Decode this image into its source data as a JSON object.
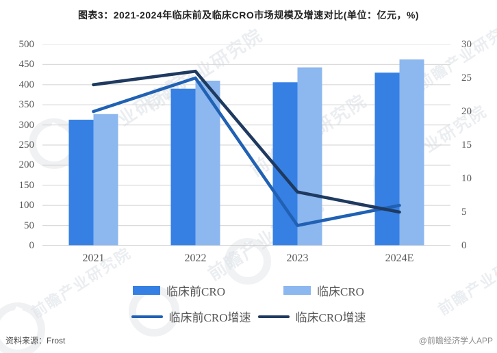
{
  "title": "图表3：2021-2024年临床前及临床CRO市场规模及增速对比(单位：亿元，%)",
  "footer": {
    "source": "资料来源：Frost",
    "credit": "@前瞻经济学人APP"
  },
  "watermark": {
    "text": "前瞻产业研究院"
  },
  "chart_data": {
    "type": "bar+line",
    "categories": [
      "2021",
      "2022",
      "2023",
      "2024E"
    ],
    "bar_series": [
      {
        "name": "临床前CRO",
        "color": "#3680E4",
        "axis": "left",
        "values": [
          313,
          390,
          406,
          430
        ]
      },
      {
        "name": "临床CRO",
        "color": "#8CB7EF",
        "axis": "left",
        "values": [
          327,
          410,
          443,
          463
        ]
      }
    ],
    "line_series": [
      {
        "name": "临床前CRO增速",
        "color": "#2061B4",
        "axis": "right",
        "values": [
          20,
          25,
          3,
          6
        ]
      },
      {
        "name": "临床CRO增速",
        "color": "#1F3A60",
        "axis": "right",
        "values": [
          24,
          26,
          8,
          5
        ]
      }
    ],
    "left_axis": {
      "min": 0,
      "max": 500,
      "step": 50,
      "unit": "亿元"
    },
    "right_axis": {
      "min": 0,
      "max": 30,
      "step": 5,
      "unit": "%"
    },
    "grid": true,
    "legend_position": "bottom",
    "colors": {
      "gridline": "#D9D9D9",
      "axis_line": "#BFBFBF",
      "tick_text": "#595959"
    }
  }
}
